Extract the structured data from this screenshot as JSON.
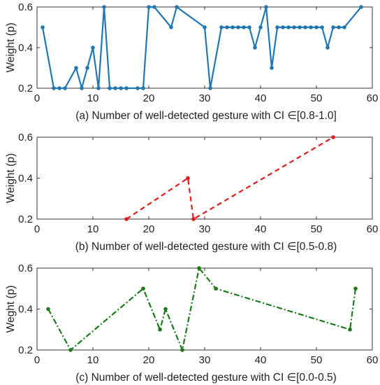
{
  "chart_data": [
    {
      "type": "line",
      "title": "",
      "xlabel": "(a) Number of well-detected gesture with CI ∈[0.8-1.0]",
      "ylabel": "Weight (p)",
      "xlim": [
        0,
        60
      ],
      "ylim": [
        0.2,
        0.6
      ],
      "xticks": [
        "0",
        "10",
        "20",
        "30",
        "40",
        "50",
        "60"
      ],
      "yticks": [
        "0.2",
        "0.4",
        "0.6"
      ],
      "grid": false,
      "series": [
        {
          "color": "#1f77b4",
          "line_style": "solid",
          "marker": "dot",
          "x": [
            1,
            3,
            4,
            5,
            7,
            8,
            9,
            10,
            11,
            12,
            13,
            14,
            15,
            16,
            18,
            19,
            20,
            21,
            24,
            25,
            30,
            31,
            33,
            34,
            35,
            36,
            37,
            38,
            39,
            40,
            41,
            42,
            43,
            44,
            45,
            46,
            47,
            48,
            49,
            50,
            51,
            52,
            53,
            54,
            55,
            58
          ],
          "y": [
            0.5,
            0.2,
            0.2,
            0.2,
            0.3,
            0.2,
            0.3,
            0.4,
            0.2,
            0.6,
            0.2,
            0.2,
            0.2,
            0.2,
            0.2,
            0.2,
            0.6,
            0.6,
            0.5,
            0.6,
            0.5,
            0.2,
            0.5,
            0.5,
            0.5,
            0.5,
            0.5,
            0.5,
            0.4,
            0.5,
            0.6,
            0.3,
            0.5,
            0.5,
            0.5,
            0.5,
            0.5,
            0.5,
            0.5,
            0.5,
            0.5,
            0.4,
            0.5,
            0.5,
            0.5,
            0.6
          ]
        }
      ]
    },
    {
      "type": "line",
      "title": "",
      "xlabel": "(b)  Number of well-detected gesture with CI ∈[0.5-0.8)",
      "ylabel": "Weight (p)",
      "xlim": [
        0,
        60
      ],
      "ylim": [
        0.2,
        0.6
      ],
      "xticks": [
        "0",
        "10",
        "20",
        "30",
        "40",
        "50",
        "60"
      ],
      "yticks": [
        "0.2",
        "0.4",
        "0.6"
      ],
      "grid": false,
      "series": [
        {
          "color": "#e31a1c",
          "line_style": "dashed",
          "marker": "dot",
          "x": [
            16,
            27,
            28,
            53
          ],
          "y": [
            0.2,
            0.4,
            0.2,
            0.6
          ]
        }
      ]
    },
    {
      "type": "line",
      "title": "",
      "xlabel": "(c) Number of well-detected gesture with CI ∈[0.0-0.5)",
      "ylabel": "Weght (p)",
      "xlim": [
        0,
        60
      ],
      "ylim": [
        0.2,
        0.6
      ],
      "xticks": [
        "0",
        "10",
        "20",
        "30",
        "40",
        "50",
        "60"
      ],
      "yticks": [
        "0.2",
        "0.4",
        "0.6"
      ],
      "grid": false,
      "series": [
        {
          "color": "#1a7a1a",
          "line_style": "dashdot",
          "marker": "dot",
          "x": [
            2,
            6,
            19,
            22,
            23,
            26,
            29,
            32,
            56,
            57
          ],
          "y": [
            0.4,
            0.2,
            0.5,
            0.3,
            0.4,
            0.2,
            0.6,
            0.5,
            0.3,
            0.5
          ]
        }
      ]
    }
  ]
}
